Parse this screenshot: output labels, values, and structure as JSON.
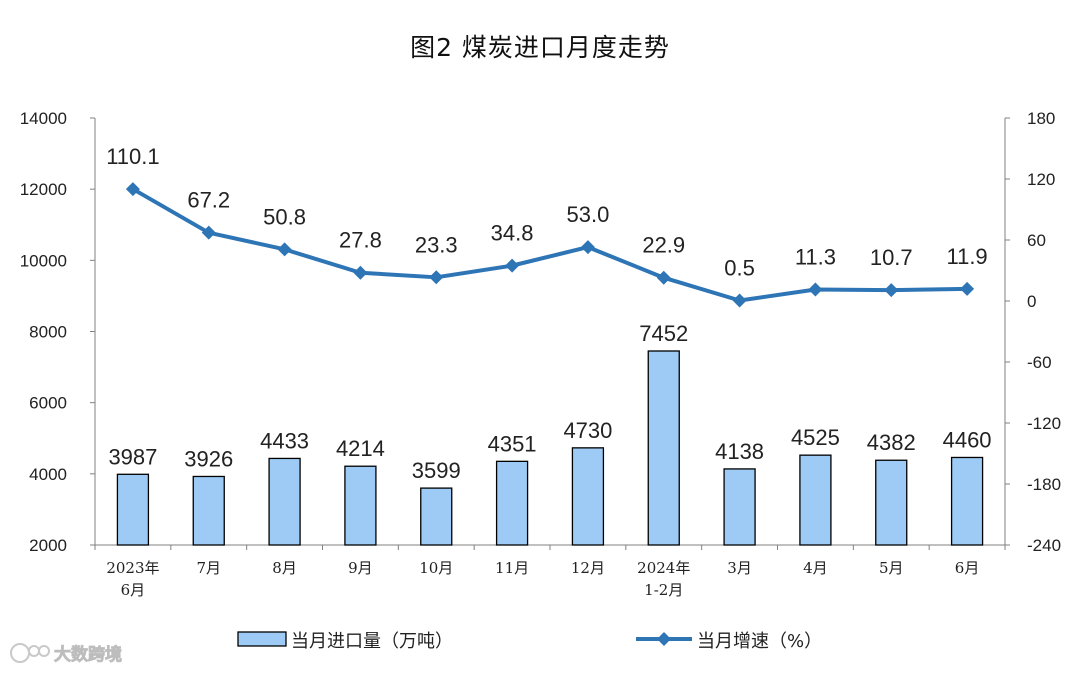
{
  "title": "图2 煤炭进口月度走势",
  "watermark": "大数跨境",
  "chart_data": {
    "type": "bar+line",
    "categories": [
      "2023年\n6月",
      "7月",
      "8月",
      "9月",
      "10月",
      "11月",
      "12月",
      "2024年\n1-2月",
      "3月",
      "4月",
      "5月",
      "6月"
    ],
    "series": [
      {
        "name": "当月进口量（万吨）",
        "type": "bar",
        "axis": "left",
        "color": "#9DCBF5",
        "values": [
          3987,
          3926,
          4433,
          4214,
          3599,
          4351,
          4730,
          7452,
          4138,
          4525,
          4382,
          4460
        ],
        "labels": [
          "3987",
          "3926",
          "4433",
          "4214",
          "3599",
          "4351",
          "4730",
          "7452",
          "4138",
          "4525",
          "4382",
          "4460"
        ]
      },
      {
        "name": "当月增速（%）",
        "type": "line",
        "axis": "right",
        "color": "#2E75B6",
        "marker": "diamond",
        "values": [
          110.1,
          67.2,
          50.8,
          27.8,
          23.3,
          34.8,
          53.0,
          22.9,
          0.5,
          11.3,
          10.7,
          11.9
        ],
        "labels": [
          "110.1",
          "67.2",
          "50.8",
          "27.8",
          "23.3",
          "34.8",
          "53.0",
          "22.9",
          "0.5",
          "11.3",
          "10.7",
          "11.9"
        ]
      }
    ],
    "y_left": {
      "min": 2000,
      "max": 14000,
      "ticks": [
        "2000",
        "4000",
        "6000",
        "8000",
        "10000",
        "12000",
        "14000"
      ]
    },
    "y_right": {
      "min": -240,
      "max": 180,
      "ticks": [
        "-240",
        "-180",
        "-120",
        "-60",
        "0",
        "60",
        "120",
        "180"
      ]
    },
    "grid": false,
    "legend_position": "bottom"
  }
}
